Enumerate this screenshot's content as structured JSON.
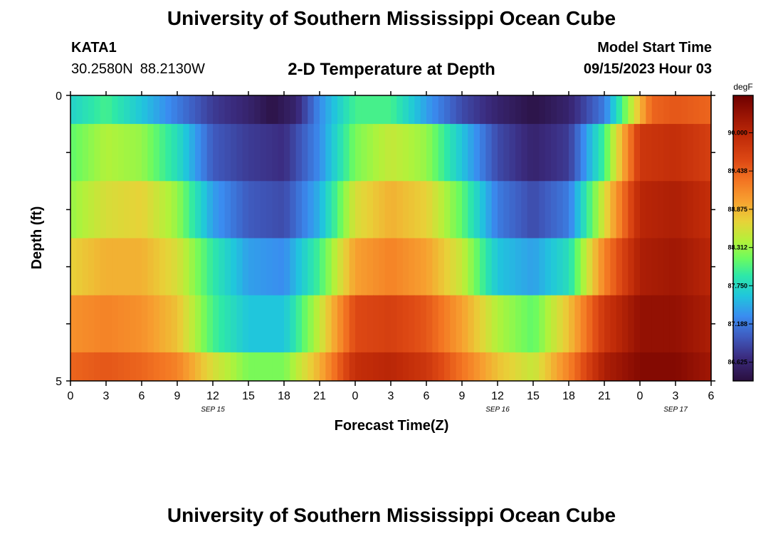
{
  "header": {
    "title": "University of Southern Mississippi Ocean Cube",
    "station": "KATA1",
    "lat": "30.2580N",
    "lon": "88.2130W",
    "subtitle": "2-D Temperature at Depth",
    "model_start_label": "Model Start Time",
    "model_start_value": "09/15/2023 Hour 03"
  },
  "footer": {
    "title": "University of Southern Mississippi Ocean Cube"
  },
  "chart_data": {
    "type": "heatmap",
    "title": "2-D Temperature at Depth",
    "xlabel": "Forecast Time(Z)",
    "ylabel": "Depth (ft)",
    "x_ticks": [
      "0",
      "3",
      "6",
      "9",
      "12",
      "15",
      "18",
      "21",
      "0",
      "3",
      "6",
      "9",
      "12",
      "15",
      "18",
      "21",
      "0",
      "3",
      "6"
    ],
    "date_labels": [
      {
        "label": "SEP 15",
        "tick_index": 4
      },
      {
        "label": "SEP 16",
        "tick_index": 12
      },
      {
        "label": "SEP 17",
        "tick_index": 17
      }
    ],
    "y_ticks": [
      "0",
      "5"
    ],
    "ylim": [
      0,
      5
    ],
    "x_range_hours": [
      0,
      54
    ],
    "colorbar": {
      "unit": "degF",
      "vmin": 86.35,
      "vmax": 90.55,
      "labels": [
        "90.000",
        "89.438",
        "88.875",
        "88.312",
        "87.750",
        "87.188",
        "86.625"
      ],
      "stops": [
        {
          "v": 86.35,
          "c": "#2a0f3e"
        },
        {
          "v": 86.7,
          "c": "#3b2c80"
        },
        {
          "v": 87.0,
          "c": "#3f5bbf"
        },
        {
          "v": 87.3,
          "c": "#3a8cf0"
        },
        {
          "v": 87.6,
          "c": "#20c6dc"
        },
        {
          "v": 87.9,
          "c": "#2ee8a8"
        },
        {
          "v": 88.15,
          "c": "#6bfb60"
        },
        {
          "v": 88.4,
          "c": "#b2f23a"
        },
        {
          "v": 88.7,
          "c": "#e8d238"
        },
        {
          "v": 89.0,
          "c": "#f7a030"
        },
        {
          "v": 89.3,
          "c": "#f37422"
        },
        {
          "v": 89.6,
          "c": "#dd4814"
        },
        {
          "v": 89.95,
          "c": "#bf2a08"
        },
        {
          "v": 90.25,
          "c": "#9a1404"
        },
        {
          "v": 90.55,
          "c": "#6e0000"
        }
      ]
    },
    "layers": [
      {
        "depth_range": [
          0.0,
          0.5
        ],
        "times": [
          0,
          3,
          6,
          9,
          12,
          15,
          17,
          19,
          21,
          24,
          27,
          30,
          33,
          36,
          39,
          42,
          45,
          47,
          49,
          51,
          54
        ],
        "values": [
          87.7,
          88.0,
          87.6,
          87.2,
          86.8,
          86.6,
          86.4,
          86.6,
          87.3,
          88.0,
          88.0,
          87.4,
          86.9,
          86.6,
          86.4,
          86.6,
          87.2,
          88.3,
          89.4,
          89.5,
          89.4
        ]
      },
      {
        "depth_range": [
          0.5,
          1.5
        ],
        "times": [
          0,
          3,
          6,
          9,
          12,
          15,
          18,
          21,
          24,
          27,
          30,
          33,
          36,
          39,
          42,
          45,
          48,
          51,
          54
        ],
        "values": [
          88.1,
          88.4,
          88.3,
          87.8,
          87.0,
          86.8,
          86.7,
          87.3,
          88.2,
          88.5,
          88.3,
          87.6,
          86.9,
          86.6,
          86.8,
          88.0,
          89.8,
          89.9,
          89.7
        ]
      },
      {
        "depth_range": [
          1.5,
          2.5
        ],
        "times": [
          0,
          3,
          6,
          9,
          12,
          15,
          18,
          21,
          24,
          27,
          30,
          33,
          36,
          39,
          42,
          45,
          48,
          51,
          54
        ],
        "values": [
          88.3,
          88.6,
          88.7,
          88.3,
          87.4,
          87.0,
          86.9,
          87.5,
          88.6,
          88.9,
          88.7,
          88.1,
          87.2,
          86.9,
          87.2,
          88.6,
          90.0,
          90.1,
          89.9
        ]
      },
      {
        "depth_range": [
          2.5,
          3.5
        ],
        "times": [
          0,
          3,
          6,
          9,
          12,
          15,
          18,
          21,
          24,
          27,
          30,
          33,
          36,
          39,
          42,
          45,
          48,
          51,
          54
        ],
        "values": [
          88.7,
          88.9,
          88.9,
          88.6,
          87.9,
          87.4,
          87.3,
          88.0,
          89.0,
          89.2,
          89.0,
          88.5,
          87.6,
          87.4,
          87.8,
          89.2,
          90.1,
          90.2,
          90.0
        ]
      },
      {
        "depth_range": [
          3.5,
          4.5
        ],
        "times": [
          0,
          3,
          6,
          9,
          12,
          15,
          18,
          21,
          24,
          27,
          30,
          33,
          36,
          39,
          42,
          45,
          48,
          51,
          54
        ],
        "values": [
          89.1,
          89.2,
          89.1,
          88.8,
          88.0,
          87.6,
          87.6,
          88.5,
          89.6,
          89.7,
          89.5,
          89.0,
          88.4,
          88.1,
          88.8,
          89.8,
          90.3,
          90.3,
          90.1
        ]
      },
      {
        "depth_range": [
          4.5,
          5.0
        ],
        "times": [
          0,
          3,
          6,
          9,
          12,
          15,
          18,
          21,
          24,
          27,
          30,
          33,
          36,
          39,
          42,
          45,
          48,
          51,
          54
        ],
        "values": [
          89.4,
          89.5,
          89.4,
          89.2,
          88.6,
          88.2,
          88.2,
          88.9,
          89.9,
          90.0,
          89.8,
          89.3,
          88.8,
          88.5,
          89.2,
          90.1,
          90.4,
          90.4,
          90.2
        ]
      }
    ]
  }
}
